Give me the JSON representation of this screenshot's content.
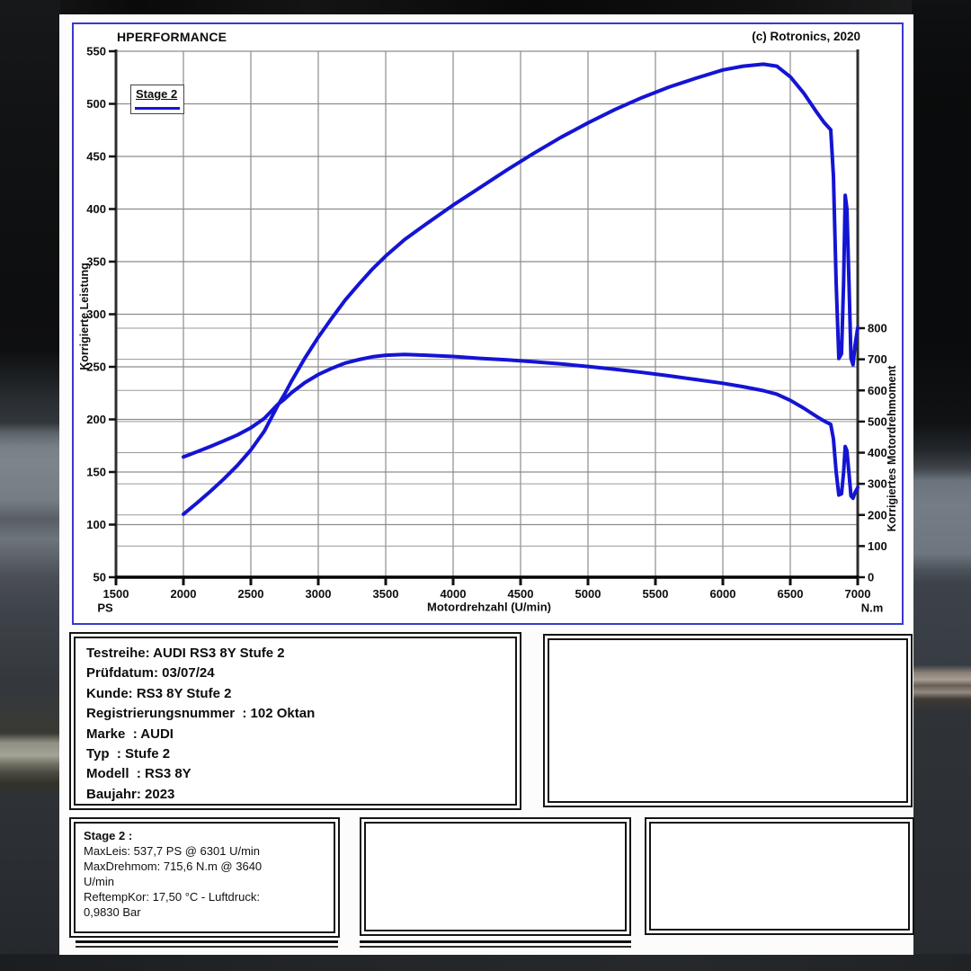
{
  "header": {
    "title": "HPERFORMANCE",
    "copyright": "(c) Rotronics, 2020"
  },
  "legend": {
    "label": "Stage 2"
  },
  "colors": {
    "curve": "#1414d4",
    "frame_blue": "#3939cf",
    "grid": "#8c8c8c",
    "grid_secondary": "#9a9a9a",
    "axis_dark": "#2e2e2e",
    "axis_black": "#000000"
  },
  "chart_data": {
    "type": "line",
    "title": "HPERFORMANCE",
    "legend_entries": [
      "Stage 2"
    ],
    "xlabel": "Motordrehzahl (U/min)",
    "ylabel_left": "Korrigierte Leistung",
    "ylabel_right": "Korrigiertes Motordrehmoment",
    "unit_left": "PS",
    "unit_right": "N.m",
    "x_range": [
      1500,
      7000
    ],
    "x_ticks": [
      1500,
      2000,
      2500,
      3000,
      3500,
      4000,
      4500,
      5000,
      5500,
      6000,
      6500,
      7000
    ],
    "y_left_range": [
      50,
      550
    ],
    "y_left_ticks": [
      50,
      100,
      150,
      200,
      250,
      300,
      350,
      400,
      450,
      500,
      550
    ],
    "y_right_ticks": [
      0,
      100,
      200,
      300,
      400,
      500,
      600,
      700,
      800
    ],
    "y_right_top_fraction": 0.4735,
    "grid": true,
    "series": [
      {
        "name": "Leistung (Stage 2)",
        "axis": "left",
        "unit": "PS",
        "max_label": "537,7 PS @ 6301 U/min",
        "x": [
          2000,
          2100,
          2200,
          2300,
          2400,
          2500,
          2600,
          2700,
          2750,
          2800,
          2900,
          3000,
          3100,
          3200,
          3300,
          3400,
          3500,
          3640,
          3800,
          4000,
          4200,
          4400,
          4600,
          4800,
          5000,
          5200,
          5400,
          5600,
          5800,
          6000,
          6150,
          6301,
          6400,
          6500,
          6600,
          6700,
          6750,
          6800,
          6820,
          6840,
          6860,
          6880,
          6895,
          6907,
          6920,
          6935,
          6950,
          6965,
          6980,
          7000
        ],
        "y": [
          109.9,
          120.5,
          131.6,
          143.4,
          156.2,
          170.9,
          188.8,
          213.3,
          224.0,
          236.0,
          258.1,
          278.1,
          296.2,
          313.5,
          328.5,
          342.7,
          355.3,
          370.9,
          385.8,
          403.8,
          420.4,
          437.3,
          453.2,
          468.2,
          481.9,
          494.6,
          505.9,
          515.9,
          524.4,
          532.2,
          535.8,
          537.7,
          535.8,
          525.7,
          510.2,
          491.3,
          482.4,
          475.3,
          431.2,
          330.2,
          257.9,
          262.5,
          330.0,
          413.0,
          400.1,
          329.9,
          258.3,
          251.9,
          270.3,
          287.0
        ]
      },
      {
        "name": "Drehmoment (Stage 2)",
        "axis": "right",
        "unit": "N.m",
        "max_label": "715,6 N.m @ 3640 U/min",
        "x": [
          2000,
          2100,
          2200,
          2300,
          2400,
          2500,
          2600,
          2700,
          2750,
          2800,
          2900,
          3000,
          3100,
          3200,
          3300,
          3400,
          3500,
          3640,
          3800,
          4000,
          4200,
          4400,
          4600,
          4800,
          5000,
          5200,
          5400,
          5600,
          5800,
          6000,
          6150,
          6301,
          6400,
          6500,
          6600,
          6700,
          6750,
          6800,
          6820,
          6840,
          6860,
          6880,
          6895,
          6907,
          6920,
          6935,
          6950,
          6965,
          6980,
          7000
        ],
        "y": [
          386,
          403,
          420,
          438,
          457,
          480,
          510,
          555,
          572,
          592,
          625,
          651,
          671,
          688,
          699,
          708,
          713,
          715.6,
          713,
          709,
          703,
          698,
          692,
          685,
          677,
          668,
          658,
          647,
          635,
          623,
          612,
          599.3,
          588,
          568,
          543,
          515,
          502,
          491,
          444,
          339,
          264,
          268,
          336,
          420,
          406,
          334,
          261,
          254,
          272,
          288
        ]
      }
    ]
  },
  "info_box": {
    "lines": [
      "Testreihe: AUDI RS3 8Y Stufe 2",
      "Prüfdatum: 03/07/24",
      "Kunde: RS3 8Y Stufe 2",
      "Registrierungsnummer  : 102 Oktan",
      "Marke  : AUDI",
      "Typ  : Stufe 2",
      "Modell  : RS3 8Y",
      "Baujahr: 2023"
    ]
  },
  "results_box": {
    "title": "Stage 2 :",
    "lines": [
      "MaxLeis: 537,7 PS @ 6301 U/min",
      "MaxDrehmom: 715,6 N.m @ 3640",
      "U/min",
      "ReftempKor: 17,50 °C - Luftdruck:",
      "0,9830 Bar"
    ]
  }
}
